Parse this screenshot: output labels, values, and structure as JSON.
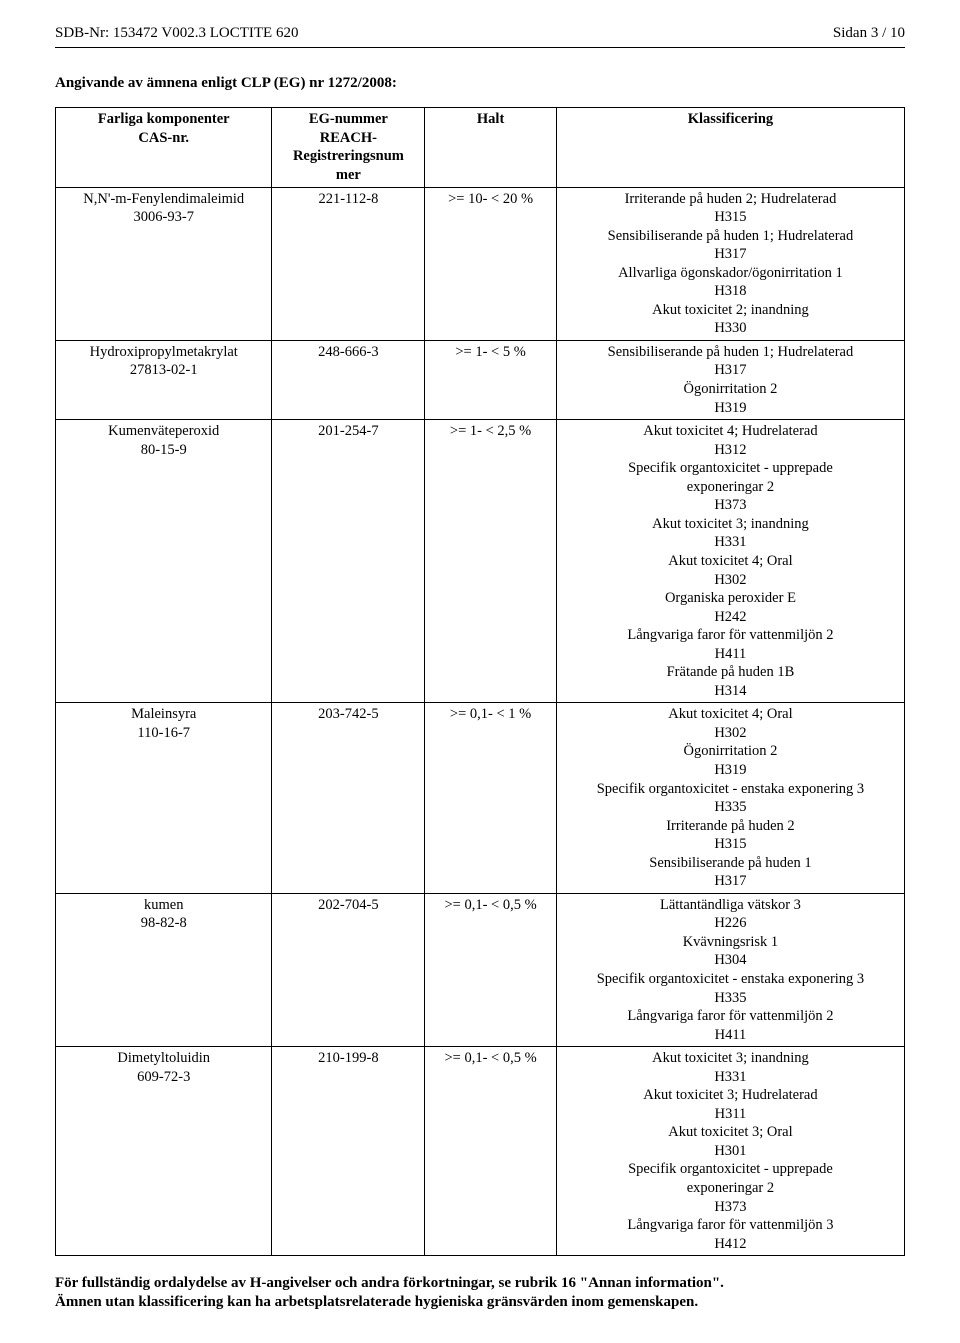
{
  "header": {
    "left": "SDB-Nr: 153472   V002.3   LOCTITE 620",
    "right": "Sidan 3 / 10"
  },
  "section_title": "Angivande av ämnena enligt CLP (EG) nr 1272/2008:",
  "table": {
    "headers": {
      "c1_l1": "Farliga komponenter",
      "c1_l2": "CAS-nr.",
      "c2_l1": "EG-nummer",
      "c2_l2": "REACH-",
      "c2_l3": "Registreringsnum",
      "c2_l4": "mer",
      "c3": "Halt",
      "c4": "Klassificering"
    },
    "rows": [
      {
        "comp_l1": "N,N'-m-Fenylendimaleimid",
        "comp_l2": "3006-93-7",
        "eg": "221-112-8",
        "halt": ">=   10- <  20 %",
        "klass": [
          "Irriterande på huden 2;  Hudrelaterad",
          "H315",
          "Sensibiliserande på huden 1;  Hudrelaterad",
          "H317",
          "Allvarliga ögonskador/ögonirritation 1",
          "H318",
          "Akut toxicitet 2;  inandning",
          "H330"
        ]
      },
      {
        "comp_l1": "Hydroxipropylmetakrylat",
        "comp_l2": "27813-02-1",
        "eg": "248-666-3",
        "halt": ">=    1- <    5 %",
        "klass": [
          "Sensibiliserande på huden 1;  Hudrelaterad",
          "H317",
          "Ögonirritation 2",
          "H319"
        ]
      },
      {
        "comp_l1": "Kumenväteperoxid",
        "comp_l2": "80-15-9",
        "eg": "201-254-7",
        "halt": ">=    1- <   2,5 %",
        "klass": [
          "Akut toxicitet 4;  Hudrelaterad",
          "H312",
          "Specifik organtoxicitet - upprepade",
          "exponeringar 2",
          "H373",
          "Akut toxicitet 3;  inandning",
          "H331",
          "Akut toxicitet 4;  Oral",
          "H302",
          "Organiska peroxider E",
          "H242",
          "Långvariga faror för vattenmiljön 2",
          "H411",
          "Frätande på huden 1B",
          "H314"
        ]
      },
      {
        "comp_l1": "Maleinsyra",
        "comp_l2": "110-16-7",
        "eg": "203-742-5",
        "halt": ">=   0,1- <    1 %",
        "klass": [
          "Akut toxicitet 4;  Oral",
          "H302",
          "Ögonirritation 2",
          "H319",
          "Specifik organtoxicitet - enstaka exponering 3",
          "H335",
          "Irriterande på huden 2",
          "H315",
          "Sensibiliserande på huden 1",
          "H317"
        ]
      },
      {
        "comp_l1": "kumen",
        "comp_l2": "98-82-8",
        "eg": "202-704-5",
        "halt": ">=   0,1- <   0,5 %",
        "klass": [
          "Lättantändliga vätskor 3",
          "H226",
          "Kvävningsrisk 1",
          "H304",
          "Specifik organtoxicitet - enstaka exponering 3",
          "H335",
          "Långvariga faror för vattenmiljön 2",
          "H411"
        ]
      },
      {
        "comp_l1": "Dimetyltoluidin",
        "comp_l2": "609-72-3",
        "eg": "210-199-8",
        "halt": ">=   0,1- <   0,5 %",
        "klass": [
          "Akut toxicitet 3;  inandning",
          "H331",
          "Akut toxicitet 3;  Hudrelaterad",
          "H311",
          "Akut toxicitet 3;  Oral",
          "H301",
          "Specifik organtoxicitet - upprepade",
          "exponeringar 2",
          "H373",
          "Långvariga faror för vattenmiljön 3",
          "H412"
        ]
      }
    ]
  },
  "footer": {
    "l1": "För fullständig ordalydelse av H-angivelser och andra förkortningar, se rubrik 16 \"Annan information\".",
    "l2": "Ämnen utan klassificering kan ha arbetsplatsrelaterade hygieniska gränsvärden inom gemenskapen."
  }
}
